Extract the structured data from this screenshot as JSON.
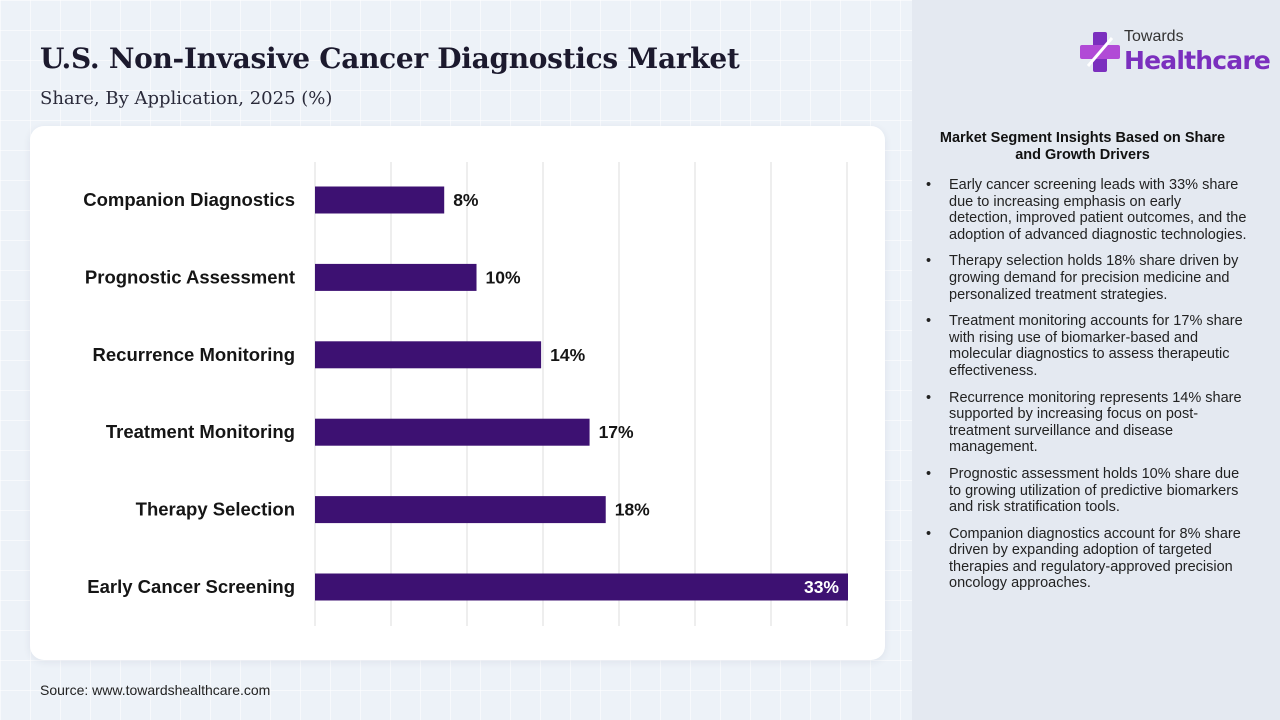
{
  "header": {
    "title": "U.S. Non-Invasive Cancer Diagnostics Market",
    "subtitle": "Share, By Application, 2025 (%)"
  },
  "logo": {
    "top": "Towards",
    "main": "Healthcare",
    "colors": {
      "accent": "#7b2fbe",
      "secondary": "#b14ad6"
    }
  },
  "source": "Source: www.towardshealthcare.com",
  "chart_data": {
    "type": "bar",
    "orientation": "horizontal",
    "categories": [
      "Companion Diagnostics",
      "Prognostic Assessment",
      "Recurrence Monitoring",
      "Treatment Monitoring",
      "Therapy Selection",
      "Early Cancer Screening"
    ],
    "values": [
      8,
      10,
      14,
      17,
      18,
      33
    ],
    "labels": [
      "8%",
      "10%",
      "14%",
      "17%",
      "18%",
      "33%"
    ],
    "xlim": [
      0,
      35
    ],
    "grid": true,
    "bar_color": "#3d1172"
  },
  "insights": {
    "title": "Market Segment Insights Based on Share and Growth Drivers",
    "items": [
      "Early cancer screening leads with 33% share due to increasing emphasis on early detection, improved patient outcomes, and the adoption of advanced diagnostic technologies.",
      "Therapy selection holds 18% share driven by growing demand for precision medicine and personalized treatment strategies.",
      "Treatment monitoring accounts for 17% share with rising use of biomarker-based and molecular diagnostics to assess therapeutic effectiveness.",
      "Recurrence monitoring represents 14% share supported by increasing focus on post-treatment surveillance and disease management.",
      "Prognostic assessment holds 10% share due to growing utilization of predictive biomarkers and risk stratification tools.",
      "Companion diagnostics account for 8% share driven by expanding adoption of targeted therapies and regulatory-approved precision oncology approaches."
    ]
  }
}
